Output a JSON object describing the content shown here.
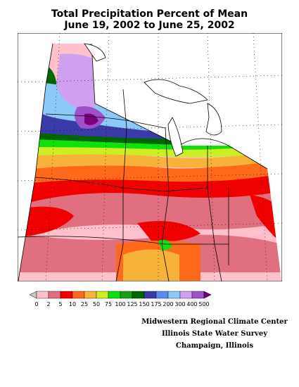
{
  "map": {
    "title_line1": "Total Precipitation Percent of Mean",
    "title_line2": "June 19, 2002 to June 25, 2002"
  },
  "legend": {
    "labels": [
      "0",
      "2",
      "5",
      "10",
      "25",
      "50",
      "75",
      "100",
      "125",
      "150",
      "175",
      "200",
      "300",
      "400",
      "500"
    ],
    "colors": [
      "#c8c8c8",
      "#ffc0cb",
      "#e07080",
      "#f00000",
      "#ff6a1a",
      "#f7b23a",
      "#ccee22",
      "#10e010",
      "#14a014",
      "#006600",
      "#3a3aa8",
      "#5a8cf0",
      "#8cc8f8",
      "#cfa0f0",
      "#a050c8",
      "#7a007a"
    ]
  },
  "credits": {
    "line1": "Midwestern Regional Climate Center",
    "line2": "Illinois State Water Survey",
    "line3": "Champaign, Illinois"
  }
}
